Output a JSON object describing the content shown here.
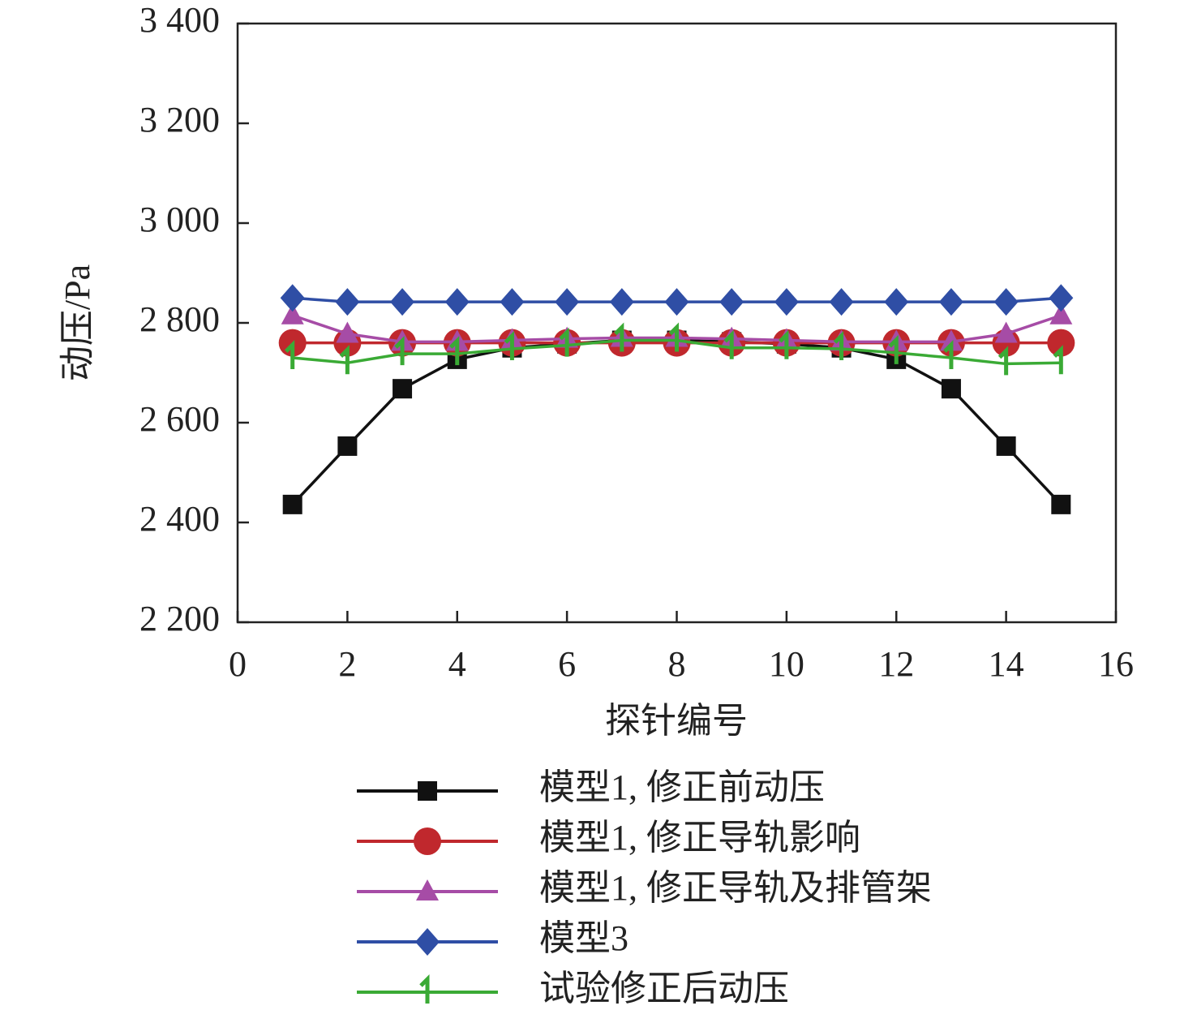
{
  "chart_data": {
    "type": "line",
    "xlabel": "探针编号",
    "ylabel": "动压/Pa",
    "x": [
      1,
      2,
      3,
      4,
      5,
      6,
      7,
      8,
      9,
      10,
      11,
      12,
      13,
      14,
      15
    ],
    "xlim": [
      0,
      16
    ],
    "xticks": [
      0,
      2,
      4,
      6,
      8,
      10,
      12,
      14,
      16
    ],
    "ylim": [
      2200,
      3400
    ],
    "yticks": [
      {
        "value": 2200,
        "label": "2 200"
      },
      {
        "value": 2400,
        "label": "2 400"
      },
      {
        "value": 2600,
        "label": "2 600"
      },
      {
        "value": 2800,
        "label": "2 800"
      },
      {
        "value": 3000,
        "label": "3 000"
      },
      {
        "value": 3200,
        "label": "3 200"
      },
      {
        "value": 3400,
        "label": "3 400"
      }
    ],
    "series": [
      {
        "name": "模型1, 修正前动压",
        "color": "#111111",
        "marker": "square",
        "values": [
          2436,
          2553,
          2668,
          2727,
          2750,
          2758,
          2765,
          2765,
          2762,
          2758,
          2750,
          2727,
          2668,
          2553,
          2436
        ]
      },
      {
        "name": "模型1, 修正导轨影响",
        "color": "#c0282d",
        "marker": "circle",
        "values": [
          2760,
          2760,
          2760,
          2760,
          2760,
          2760,
          2760,
          2760,
          2760,
          2760,
          2760,
          2760,
          2760,
          2760,
          2760
        ]
      },
      {
        "name": "模型1, 修正导轨及排管架",
        "color": "#a64ca6",
        "marker": "triangle",
        "values": [
          2815,
          2778,
          2762,
          2762,
          2765,
          2768,
          2770,
          2770,
          2768,
          2765,
          2762,
          2762,
          2762,
          2778,
          2815
        ]
      },
      {
        "name": "模型3",
        "color": "#2f4ea5",
        "marker": "diamond",
        "values": [
          2850,
          2842,
          2842,
          2842,
          2842,
          2842,
          2842,
          2842,
          2842,
          2842,
          2842,
          2842,
          2842,
          2842,
          2850
        ]
      },
      {
        "name": "试验修正后动压",
        "color": "#3aaa35",
        "marker": "one",
        "values": [
          2730,
          2720,
          2738,
          2738,
          2748,
          2755,
          2765,
          2765,
          2750,
          2750,
          2748,
          2740,
          2730,
          2718,
          2720
        ]
      }
    ]
  }
}
